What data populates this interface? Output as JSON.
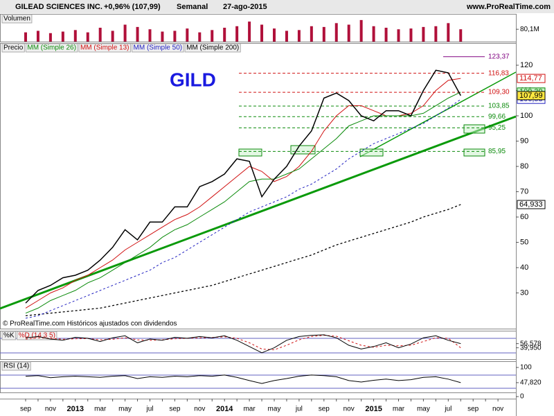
{
  "header": {
    "title": "GILEAD SCIENCES INC.",
    "change": "+0,96% (107,99)",
    "period": "Semanal",
    "date": "27-ago-2015",
    "site": "www.ProRealTime.com"
  },
  "chart_data": [
    {
      "type": "bar",
      "title": "Volumen",
      "color": "#b0103a",
      "values": [
        60,
        70,
        55,
        65,
        75,
        60,
        90,
        70,
        110,
        95,
        80,
        65,
        70,
        85,
        60,
        75,
        90,
        100,
        130,
        110,
        85,
        70,
        75,
        100,
        95,
        120,
        110,
        140,
        100,
        90,
        80,
        85,
        95,
        100,
        120,
        80.1,
        null,
        null,
        null
      ],
      "ylim": [
        0,
        180
      ],
      "yticks": [
        {
          "value": 80.1,
          "label": "80,1M"
        }
      ]
    },
    {
      "type": "line",
      "annotation": "GILD",
      "credit": "© ProRealTime.com Históricos ajustados con dividendos",
      "ylim": [
        20,
        127
      ],
      "yticks": [
        30,
        40,
        50,
        60,
        70,
        80,
        90,
        100,
        110,
        120
      ],
      "series": [
        {
          "name": "Precio",
          "color": "#000000",
          "style": "solid",
          "width": 1.5,
          "last_label": "107,99",
          "label_bg": "#ffe840",
          "values": [
            26,
            31,
            33,
            36,
            37,
            39,
            43,
            48,
            55,
            51,
            58,
            58,
            64,
            64,
            72,
            74,
            77,
            83,
            82,
            68,
            75,
            80,
            88,
            94,
            107,
            109,
            106,
            100,
            98,
            102,
            102,
            100,
            110,
            118,
            117,
            107.99,
            null,
            null,
            null
          ]
        },
        {
          "name": "MM (Simple 26)",
          "color": "#0a8a0a",
          "style": "solid",
          "width": 1,
          "last_label": "109,39",
          "label_bg": "#c8f0c8",
          "values": [
            22,
            24,
            27,
            29,
            31,
            34,
            36,
            39,
            42,
            45,
            48,
            52,
            55,
            57,
            60,
            63,
            66,
            70,
            74,
            75,
            75,
            77,
            79,
            83,
            87,
            91,
            96,
            98,
            100,
            100,
            100,
            100,
            101,
            104,
            107,
            109.39,
            null,
            null,
            null
          ]
        },
        {
          "name": "MM (Simple 13)",
          "color": "#d01010",
          "style": "solid",
          "width": 1,
          "last_label": "114,77",
          "label_bg": "#ffffff",
          "values": [
            24,
            27,
            30,
            32,
            35,
            37,
            40,
            43,
            47,
            50,
            53,
            56,
            59,
            61,
            64,
            68,
            72,
            76,
            80,
            78,
            74,
            76,
            80,
            86,
            94,
            100,
            104,
            104,
            102,
            100,
            100,
            101,
            104,
            110,
            114,
            114.77,
            null,
            null,
            null
          ]
        },
        {
          "name": "MM (Simple 50)",
          "color": "#2020c0",
          "style": "dashed",
          "width": 1,
          "last_label": "106,53",
          "label_bg": "#ffffff",
          "values": [
            20,
            21,
            23,
            25,
            27,
            29,
            31,
            33,
            35,
            37,
            39,
            42,
            44,
            47,
            50,
            53,
            56,
            59,
            62,
            64,
            66,
            68,
            71,
            73,
            76,
            79,
            83,
            86,
            89,
            91,
            93,
            95,
            97,
            100,
            103,
            106.53,
            null,
            null,
            null
          ]
        },
        {
          "name": "MM (Simple 200)",
          "color": "#000000",
          "style": "dashed",
          "width": 1.3,
          "last_label": "64,933",
          "label_bg": "#ffffff",
          "values": [
            21,
            21.5,
            22,
            22.5,
            23,
            23.5,
            24,
            25,
            26,
            27,
            28,
            29,
            30,
            31,
            32,
            33,
            34.5,
            36,
            37.5,
            39,
            40.5,
            42,
            43.5,
            45,
            47,
            49,
            50.5,
            52,
            53.5,
            55,
            56.5,
            58,
            60,
            61.5,
            63,
            64.933,
            null,
            null,
            null
          ]
        }
      ],
      "levels": [
        {
          "value": 123.37,
          "label": "123,37",
          "color": "#800080"
        },
        {
          "value": 116.83,
          "label": "116,83",
          "color": "#d01010"
        },
        {
          "value": 109.3,
          "label": "109,30",
          "color": "#d01010"
        },
        {
          "value": 103.85,
          "label": "103,85",
          "color": "#0a8a0a"
        },
        {
          "value": 99.66,
          "label": "99,66",
          "color": "#0a8a0a"
        },
        {
          "value": 95.25,
          "label": "95,25",
          "color": "#0a8a0a"
        },
        {
          "value": 85.95,
          "label": "85,95",
          "color": "#0a8a0a"
        }
      ]
    },
    {
      "type": "line",
      "ylim": [
        0,
        100
      ],
      "yticks": [
        {
          "value": 56.578,
          "label": "56,578"
        },
        {
          "value": 39.95,
          "label": "39,950"
        }
      ],
      "series": [
        {
          "name": "%K",
          "color": "#000000",
          "style": "solid",
          "width": 1,
          "values": [
            80,
            85,
            75,
            70,
            82,
            78,
            65,
            80,
            88,
            60,
            75,
            70,
            82,
            78,
            85,
            80,
            88,
            70,
            45,
            20,
            40,
            70,
            85,
            90,
            92,
            80,
            50,
            35,
            45,
            60,
            40,
            55,
            80,
            88,
            70,
            56.578,
            null,
            null,
            null
          ]
        },
        {
          "name": "%D (14 3 5)",
          "color": "#d01010",
          "style": "dashed",
          "width": 1,
          "values": [
            75,
            80,
            78,
            74,
            76,
            77,
            72,
            74,
            80,
            72,
            70,
            72,
            76,
            78,
            80,
            81,
            84,
            78,
            60,
            35,
            32,
            50,
            72,
            85,
            90,
            86,
            68,
            50,
            42,
            50,
            48,
            50,
            65,
            80,
            78,
            39.95,
            null,
            null,
            null
          ]
        }
      ]
    },
    {
      "type": "line",
      "ylim": [
        0,
        100
      ],
      "yticks": [
        100,
        {
          "value": 47.82,
          "label": "47,820"
        },
        0
      ],
      "categories": [
        "sep",
        null,
        "nov",
        null,
        "2013",
        null,
        "mar",
        null,
        "may",
        null,
        "jul",
        null,
        "sep",
        null,
        "nov",
        null,
        "2014",
        null,
        "mar",
        null,
        "may",
        null,
        "jul",
        null,
        "sep",
        null,
        "nov",
        null,
        "2015",
        null,
        "mar",
        null,
        "may",
        null,
        "jul",
        null,
        "sep",
        null,
        "nov"
      ],
      "series": [
        {
          "name": "RSI (14)",
          "color": "#000000",
          "style": "solid",
          "width": 1,
          "values": [
            70,
            72,
            65,
            68,
            70,
            68,
            66,
            70,
            72,
            62,
            68,
            66,
            70,
            68,
            72,
            70,
            74,
            66,
            55,
            45,
            55,
            62,
            70,
            74,
            72,
            68,
            55,
            50,
            56,
            60,
            55,
            58,
            66,
            68,
            60,
            47.82,
            null,
            null,
            null
          ]
        }
      ]
    }
  ]
}
